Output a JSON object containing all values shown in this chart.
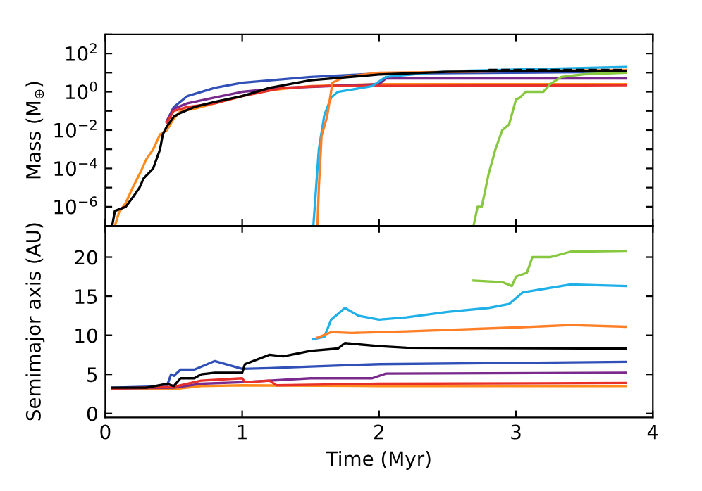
{
  "chart_data": [
    {
      "type": "line",
      "ylabel": "Mass (M$_{⊕}$)",
      "log": "y",
      "xlim": [
        0,
        4
      ],
      "xticks": [
        0,
        1,
        2,
        3,
        4
      ],
      "ylim": [
        1e-07,
        1000
      ],
      "tick_labels": "y",
      "grid": false,
      "legend": false,
      "yticks": [
        {
          "value": 1e-07,
          "label": null
        },
        {
          "value": 1e-06,
          "label": "10$^{−6}$"
        },
        {
          "value": 1e-05,
          "label": null
        },
        {
          "value": 0.0001,
          "label": "10$^{−4}$"
        },
        {
          "value": 0.001,
          "label": null
        },
        {
          "value": 0.01,
          "label": "10$^{−2}$"
        },
        {
          "value": 0.1,
          "label": null
        },
        {
          "value": 1,
          "label": "10$^{0}$"
        },
        {
          "value": 10,
          "label": null
        },
        {
          "value": 100,
          "label": "10$^{2}$"
        },
        {
          "value": 1000,
          "label": null
        }
      ],
      "series": [
        {
          "color": "#ff8c1a",
          "x": [
            0.07,
            0.1,
            0.15,
            0.2,
            0.25,
            0.3,
            0.35,
            0.4,
            0.45,
            0.5,
            0.55,
            0.65,
            0.8,
            1.0,
            1.2,
            1.5,
            2.0,
            3.8
          ],
          "values": [
            1e-07,
            5e-07,
            1.6e-06,
            1e-05,
            5e-05,
            0.0003,
            0.001,
            0.006,
            0.01,
            0.04,
            0.1,
            0.13,
            0.25,
            0.6,
            1.2,
            2,
            2.5,
            2.5
          ]
        },
        {
          "color": "#3050b8",
          "x": [
            0.45,
            0.5,
            0.6,
            0.8,
            1.0,
            1.5,
            2.0,
            3.8
          ],
          "values": [
            0.03,
            0.16,
            0.6,
            1.6,
            3,
            6,
            9,
            11
          ]
        },
        {
          "color": "#7a2a8c",
          "x": [
            0.45,
            0.5,
            0.6,
            0.8,
            1.0,
            1.3,
            2.0,
            2.05,
            3.8
          ],
          "values": [
            0.03,
            0.13,
            0.25,
            0.5,
            1,
            1.6,
            2.5,
            5,
            5
          ]
        },
        {
          "color": "#e8302a",
          "x": [
            0.45,
            0.5,
            0.6,
            0.8,
            1.0,
            1.3,
            1.6,
            3.8
          ],
          "values": [
            0.025,
            0.1,
            0.16,
            0.25,
            0.6,
            1.6,
            2,
            2.2
          ]
        },
        {
          "color": "#1fb0e8",
          "x": [
            1.52,
            1.54,
            1.56,
            1.6,
            1.65,
            1.7,
            1.8,
            1.95,
            2.05,
            2.5,
            3.8
          ],
          "values": [
            1e-07,
            1e-05,
            0.001,
            0.06,
            0.5,
            1,
            1.3,
            2,
            6,
            12,
            20
          ]
        },
        {
          "color": "#ff7f27",
          "x": [
            1.55,
            1.56,
            1.58,
            1.62,
            1.66,
            1.75,
            2.0,
            3.8
          ],
          "values": [
            1e-07,
            1e-05,
            0.005,
            0.05,
            3,
            6,
            10,
            14
          ]
        },
        {
          "color": "#88c840",
          "x": [
            2.69,
            2.72,
            2.75,
            2.8,
            2.85,
            2.9,
            2.95,
            3.0,
            3.03,
            3.07,
            3.2,
            3.25,
            3.33,
            3.5,
            3.8
          ],
          "values": [
            1e-07,
            1e-06,
            1e-06,
            5e-05,
            0.001,
            0.01,
            0.02,
            0.4,
            0.5,
            1,
            1,
            2.5,
            6,
            8.3,
            10
          ]
        },
        {
          "color": "#000000",
          "x": [
            0.05,
            0.07,
            0.15,
            0.2,
            0.25,
            0.28,
            0.35,
            0.4,
            0.42,
            0.45,
            0.5,
            0.55,
            0.65,
            0.8,
            1.0,
            1.2,
            1.5,
            2.0,
            2.5,
            3.0,
            3.8
          ],
          "values": [
            1e-07,
            6e-07,
            1e-06,
            3e-06,
            1e-05,
            3e-05,
            0.0001,
            0.001,
            0.006,
            0.016,
            0.05,
            0.08,
            0.16,
            0.3,
            0.6,
            1.6,
            4,
            8,
            11,
            12.5,
            12.5
          ]
        },
        {
          "color": "#000000",
          "line_style": "dashed",
          "x": [
            2.8,
            3.8
          ],
          "values": [
            14,
            14
          ]
        }
      ]
    },
    {
      "type": "line",
      "xlabel": "Time (Myr)",
      "ylabel": "Semimajor axis (AU)",
      "xlim": [
        0,
        4
      ],
      "xticks": [
        0,
        1,
        2,
        3,
        4
      ],
      "ylim": [
        -0.5,
        24
      ],
      "yticks": [
        0,
        5,
        10,
        15,
        20
      ],
      "grid": false,
      "legend": false,
      "series": [
        {
          "color": "#ff8c1a",
          "x": [
            0.05,
            0.5,
            0.7,
            1.0,
            2.0,
            3.8
          ],
          "values": [
            3.1,
            3.1,
            3.5,
            3.6,
            3.5,
            3.5
          ]
        },
        {
          "color": "#3050b8",
          "x": [
            0.05,
            0.45,
            0.48,
            0.5,
            0.55,
            0.65,
            0.8,
            1.0,
            1.2,
            1.5,
            2.0,
            3.8
          ],
          "values": [
            3.3,
            3.5,
            5,
            4.8,
            5.6,
            5.6,
            6.7,
            5.7,
            5.8,
            6,
            6.3,
            6.6
          ]
        },
        {
          "color": "#7a2a8c",
          "x": [
            0.05,
            0.5,
            0.7,
            1.0,
            1.5,
            1.95,
            2.05,
            3.8
          ],
          "values": [
            3.2,
            3.3,
            3.8,
            4,
            4.5,
            4.5,
            5.1,
            5.2
          ]
        },
        {
          "color": "#e8302a",
          "x": [
            0.05,
            0.5,
            0.7,
            1.0,
            1.02,
            1.2,
            1.25,
            2.0,
            3.8
          ],
          "values": [
            3.2,
            3.4,
            4.2,
            4.5,
            4.0,
            4.2,
            3.6,
            3.8,
            3.9
          ]
        },
        {
          "color": "#1fb0e8",
          "x": [
            1.52,
            1.6,
            1.65,
            1.75,
            1.85,
            2.0,
            2.2,
            2.5,
            2.8,
            2.95,
            3.05,
            3.4,
            3.8
          ],
          "values": [
            9.5,
            9.8,
            12,
            13.5,
            12.5,
            12,
            12.3,
            13,
            13.5,
            14,
            15.5,
            16.5,
            16.3
          ]
        },
        {
          "color": "#ff7f27",
          "x": [
            1.55,
            1.65,
            1.8,
            2.2,
            3.0,
            3.4,
            3.8
          ],
          "values": [
            9.7,
            10.4,
            10.3,
            10.5,
            11,
            11.3,
            11.1
          ]
        },
        {
          "color": "#88c840",
          "x": [
            2.69,
            2.9,
            2.97,
            3.0,
            3.08,
            3.12,
            3.25,
            3.4,
            3.8
          ],
          "values": [
            17,
            16.8,
            16.3,
            17.5,
            18,
            20,
            20,
            20.7,
            20.8
          ]
        },
        {
          "color": "#000000",
          "x": [
            0.05,
            0.3,
            0.45,
            0.5,
            0.55,
            0.65,
            0.7,
            0.8,
            1.0,
            1.02,
            1.2,
            1.3,
            1.5,
            1.7,
            1.75,
            2.0,
            2.2,
            3.8
          ],
          "values": [
            3.3,
            3.3,
            3.8,
            3.5,
            4.5,
            4.5,
            5,
            5.2,
            5.2,
            6.3,
            7.5,
            7.3,
            8,
            8.3,
            9,
            8.6,
            8.4,
            8.3
          ]
        }
      ]
    }
  ]
}
